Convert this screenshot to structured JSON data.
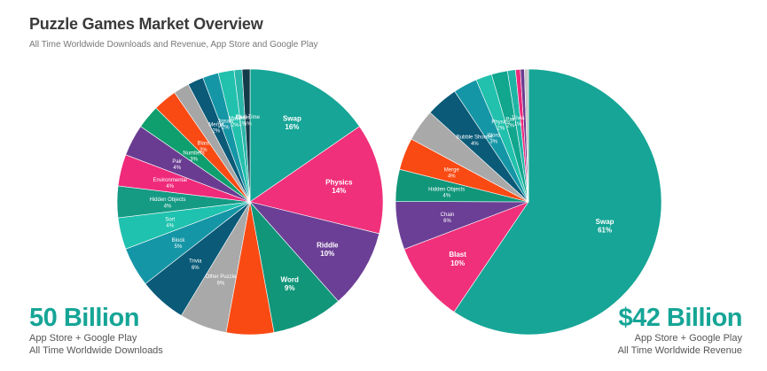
{
  "header": {
    "title": "Puzzle Games Market Overview",
    "subtitle": "All Time Worldwide Downloads and Revenue, App Store and Google Play"
  },
  "downloads": {
    "headline": "50 Billion",
    "line1": "App Store + Google Play",
    "line2": "All Time Worldwide Downloads"
  },
  "revenue": {
    "headline": "$42 Billion",
    "line1": "App Store + Google Play",
    "line2": "All Time Worldwide Revenue"
  },
  "chart_data": [
    {
      "type": "pie",
      "slices": [
        {
          "label": "Swap",
          "value": 16,
          "text": "16%",
          "color": "#16a596"
        },
        {
          "label": "Physics",
          "value": 14,
          "text": "14%",
          "color": "#f0307a"
        },
        {
          "label": "Riddle",
          "value": 10,
          "text": "10%",
          "color": "#6b3f96"
        },
        {
          "label": "Word",
          "value": 9,
          "text": "9%",
          "color": "#11967a"
        },
        {
          "label": "",
          "value": 6,
          "text": "",
          "color": "#fa4a13"
        },
        {
          "label": "Other Puzzle",
          "value": 6,
          "text": "6%",
          "color": "#a9a9a9"
        },
        {
          "label": "Trivia",
          "value": 6,
          "text": "6%",
          "color": "#0a5a78"
        },
        {
          "label": "Block",
          "value": 5,
          "text": "5%",
          "color": "#1596a6"
        },
        {
          "label": "Sort",
          "value": 4,
          "text": "4%",
          "color": "#1fc2ae"
        },
        {
          "label": "Hidden Objects",
          "value": 4,
          "text": "4%",
          "color": "#159a84"
        },
        {
          "label": "Environmental",
          "value": 4,
          "text": "4%",
          "color": "#ef2a7a"
        },
        {
          "label": "Pair",
          "value": 4,
          "text": "4%",
          "color": "#6a3c91"
        },
        {
          "label": "Numbers",
          "value": 3,
          "text": "3%",
          "color": "#0f9f6e"
        },
        {
          "label": "Blast",
          "value": 3,
          "text": "3%",
          "color": "#fa4a13"
        },
        {
          "label": "",
          "value": 2,
          "text": "",
          "color": "#a6a6a6"
        },
        {
          "label": "Merge",
          "value": 2,
          "text": "2%",
          "color": "#0a5a78"
        },
        {
          "label": "Jigsaw",
          "value": 2,
          "text": "2%",
          "color": "#1596a6"
        },
        {
          "label": "Maze",
          "value": 2,
          "text": "2%",
          "color": "#21c1ad"
        },
        {
          "label": "Chain",
          "value": 1,
          "text": "1%",
          "color": "#2ab7a9"
        },
        {
          "label": "Real-Time",
          "value": 1,
          "text": "1%",
          "color": "#133b4a"
        }
      ]
    },
    {
      "type": "pie",
      "slices": [
        {
          "label": "Swap",
          "value": 61,
          "text": "61%",
          "color": "#16a596"
        },
        {
          "label": "Blast",
          "value": 10,
          "text": "10%",
          "color": "#f0307a"
        },
        {
          "label": "Chain",
          "value": 6,
          "text": "6%",
          "color": "#6b3f96"
        },
        {
          "label": "Hidden Objects",
          "value": 4,
          "text": "4%",
          "color": "#11967a"
        },
        {
          "label": "Merge",
          "value": 4,
          "text": "4%",
          "color": "#fa4a13"
        },
        {
          "label": "",
          "value": 4,
          "text": "",
          "color": "#a9a9a9"
        },
        {
          "label": "Bubble Shooter",
          "value": 4,
          "text": "4%",
          "color": "#0a5a78"
        },
        {
          "label": "Word",
          "value": 3,
          "text": "3%",
          "color": "#1596a6"
        },
        {
          "label": "Physics",
          "value": 2,
          "text": "2%",
          "color": "#21c1ad"
        },
        {
          "label": "Pair",
          "value": 2,
          "text": "2%",
          "color": "#11a68e"
        },
        {
          "label": "Trivia",
          "value": 1,
          "text": "1%",
          "color": "#1fb5a5"
        },
        {
          "label": "",
          "value": 0.6,
          "text": "",
          "color": "#ee2a7b"
        },
        {
          "label": "",
          "value": 0.5,
          "text": "",
          "color": "#6a3c91"
        },
        {
          "label": "",
          "value": 0.5,
          "text": "",
          "color": "#c8c8c8"
        }
      ]
    }
  ]
}
